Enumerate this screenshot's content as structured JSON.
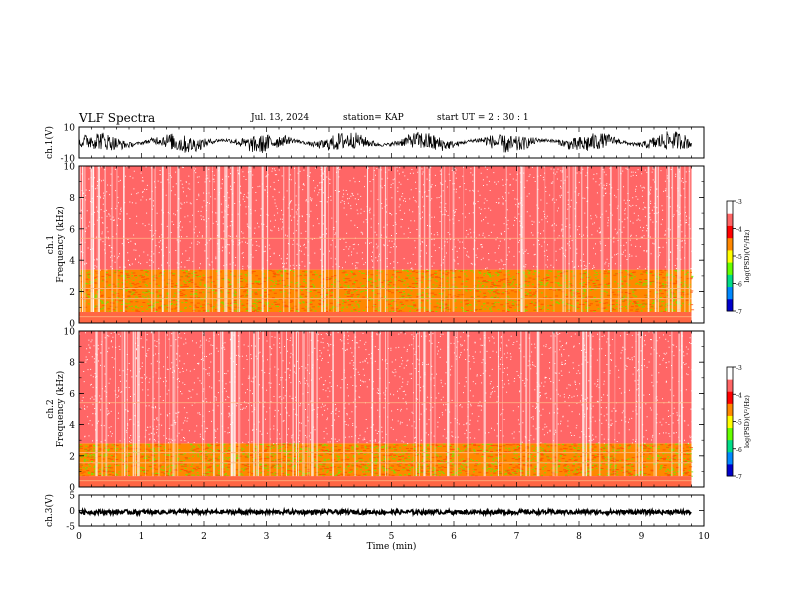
{
  "header": {
    "title": "VLF Spectra",
    "date": "Jul. 13, 2024",
    "station": "station= KAP",
    "start": "start  UT =   2 : 30 : 1"
  },
  "chart_data": [
    {
      "type": "line",
      "ylabel": "ch.1(V)",
      "ylim": [
        -10,
        10
      ],
      "yticks": [
        "10",
        "-10"
      ],
      "xlim": [
        0,
        10
      ],
      "description_series": "dense oscillating waveform between about -8 and 8 V over 0 to 9.8 min"
    },
    {
      "type": "heatmap",
      "ylabel": "ch.1\nFrequency (kHz)",
      "ylabel_line1": "ch.1",
      "ylabel_line2": "Frequency (kHz)",
      "ylim": [
        0,
        10
      ],
      "yticks": [
        "0",
        "2",
        "4",
        "6",
        "8",
        "10"
      ],
      "xlim": [
        0,
        10
      ],
      "data_end_min": 9.8,
      "bands": [
        {
          "from_khz": 0.7,
          "to_khz": 3.4,
          "level": -4.6
        },
        {
          "from_khz": 3.4,
          "to_khz": 10,
          "level": -3.4
        }
      ],
      "colorbar": {
        "label": "log(PSD)(V²/Hz)",
        "ticks": [
          "-3",
          "-4",
          "-5",
          "-6",
          "-7"
        ],
        "range": [
          -7,
          -3
        ],
        "colors": [
          "#0000cc",
          "#0088ff",
          "#00dd88",
          "#66ff00",
          "#ffff00",
          "#ff8800",
          "#ff0000",
          "#ff6666",
          "#ffffff"
        ]
      }
    },
    {
      "type": "heatmap",
      "ylabel": "ch.2\nFrequency (kHz)",
      "ylabel_line1": "ch.2",
      "ylabel_line2": "Frequency (kHz)",
      "ylim": [
        0,
        10
      ],
      "yticks": [
        "0",
        "2",
        "4",
        "6",
        "8",
        "10"
      ],
      "xlim": [
        0,
        10
      ],
      "data_end_min": 9.8,
      "bands": [
        {
          "from_khz": 0.7,
          "to_khz": 2.8,
          "level": -4.7
        },
        {
          "from_khz": 2.8,
          "to_khz": 10,
          "level": -3.4
        }
      ],
      "colorbar": {
        "label": "log(PSD)(V²/Hz)",
        "ticks": [
          "-3",
          "-4",
          "-5",
          "-6",
          "-7"
        ],
        "range": [
          -7,
          -3
        ],
        "colors": [
          "#0000cc",
          "#0088ff",
          "#00dd88",
          "#66ff00",
          "#ffff00",
          "#ff8800",
          "#ff0000",
          "#ff6666",
          "#ffffff"
        ]
      }
    },
    {
      "type": "line",
      "ylabel": "ch.3(V)",
      "ylim": [
        -5,
        5
      ],
      "yticks": [
        "5",
        "0",
        "-5"
      ],
      "xlim": [
        0,
        10
      ],
      "xlabel": "Time (min)",
      "xticks": [
        "0",
        "1",
        "2",
        "3",
        "4",
        "5",
        "6",
        "7",
        "8",
        "9",
        "10"
      ],
      "description_series": "near-constant signal around -0.5 V with small jitter"
    }
  ]
}
